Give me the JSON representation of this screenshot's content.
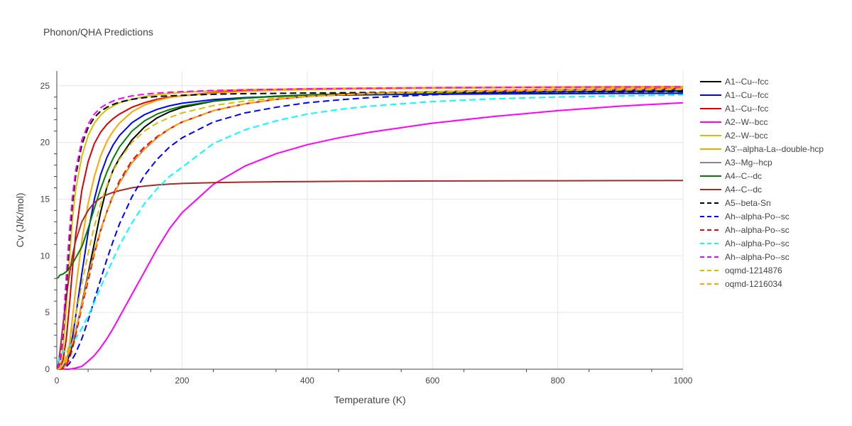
{
  "chart_data": {
    "type": "line",
    "title": "Phonon/QHA Predictions",
    "xlabel": "Temperature (K)",
    "ylabel": "Cv (J/K/mol)",
    "xlim": [
      0,
      1000
    ],
    "ylim": [
      0,
      26.3
    ],
    "xticks": [
      0,
      200,
      400,
      600,
      800,
      1000
    ],
    "yticks": [
      0,
      5,
      10,
      15,
      20,
      25
    ],
    "grid": true,
    "legend_position": "right",
    "x": [
      1,
      5,
      10,
      15,
      20,
      25,
      30,
      40,
      50,
      60,
      70,
      80,
      90,
      100,
      120,
      140,
      160,
      180,
      200,
      250,
      300,
      350,
      400,
      450,
      500,
      600,
      700,
      800,
      900,
      1000
    ],
    "series": [
      {
        "name": "A1--Cu--fcc",
        "color": "#000000",
        "dash": "solid",
        "values": [
          0.0,
          0.02,
          0.16,
          0.52,
          1.19,
          2.12,
          3.26,
          5.79,
          8.41,
          11.13,
          13.86,
          16.08,
          17.57,
          18.6,
          20.22,
          21.36,
          22.16,
          22.7,
          23.09,
          23.64,
          23.91,
          24.08,
          24.19,
          24.26,
          24.32,
          24.4,
          24.45,
          24.49,
          24.52,
          24.55
        ]
      },
      {
        "name": "A1--Cu--fcc",
        "color": "#0000ff",
        "dash": "solid",
        "values": [
          0.0,
          0.02,
          0.16,
          0.59,
          1.43,
          2.8,
          4.64,
          8.44,
          12.05,
          15.0,
          17.15,
          18.68,
          19.79,
          20.61,
          21.74,
          22.45,
          22.91,
          23.23,
          23.46,
          23.78,
          23.95,
          24.05,
          24.12,
          24.17,
          24.2,
          24.25,
          24.28,
          24.3,
          24.32,
          24.33
        ]
      },
      {
        "name": "A1--Cu--fcc",
        "color": "#dd0000",
        "dash": "solid",
        "values": [
          0.0,
          0.03,
          0.8,
          2.6,
          5.5,
          8.8,
          11.8,
          15.8,
          18.3,
          19.9,
          20.9,
          21.6,
          22.1,
          22.5,
          23.1,
          23.5,
          23.8,
          24.0,
          24.1,
          24.4,
          24.55,
          24.65,
          24.7,
          24.75,
          24.78,
          24.82,
          24.85,
          24.87,
          24.89,
          24.9
        ]
      },
      {
        "name": "A2--W--bcc",
        "color": "#ff00ff",
        "dash": "solid",
        "values": [
          0.0,
          0.0,
          0.0,
          0.0,
          0.0,
          0.05,
          0.1,
          0.25,
          0.7,
          1.2,
          1.9,
          2.7,
          3.6,
          4.6,
          6.6,
          8.6,
          10.6,
          12.4,
          13.8,
          16.3,
          17.9,
          19.0,
          19.8,
          20.4,
          20.9,
          21.7,
          22.3,
          22.8,
          23.2,
          23.5
        ]
      },
      {
        "name": "A2--W--bcc",
        "color": "#d4c000",
        "dash": "solid",
        "values": [
          0.0,
          0.2,
          1.8,
          5.2,
          9.5,
          13.2,
          15.8,
          18.8,
          20.6,
          21.7,
          22.4,
          22.9,
          23.2,
          23.5,
          23.8,
          24.05,
          24.2,
          24.3,
          24.4,
          24.55,
          24.65,
          24.7,
          24.75,
          24.78,
          24.8,
          24.85,
          24.88,
          24.9,
          24.92,
          24.93
        ]
      },
      {
        "name": "A3'--alpha-La--double-hcp",
        "color": "#ffa500",
        "dash": "solid",
        "values": [
          0.0,
          0.0,
          0.0,
          0.4,
          2.1,
          4.5,
          7.0,
          11.3,
          14.6,
          17.0,
          18.8,
          20.1,
          21.0,
          21.7,
          22.7,
          23.3,
          23.7,
          23.95,
          24.1,
          24.35,
          24.5,
          24.6,
          24.66,
          24.7,
          24.73,
          24.78,
          24.81,
          24.83,
          24.85,
          24.86
        ]
      },
      {
        "name": "A3--Mg--hcp",
        "color": "#888888",
        "dash": "solid",
        "values": [
          0.0,
          0.05,
          0.3,
          0.8,
          1.5,
          2.4,
          3.4,
          5.7,
          8.2,
          10.4,
          12.3,
          13.9,
          15.3,
          16.4,
          18.2,
          19.4,
          20.4,
          21.2,
          21.8,
          22.8,
          23.4,
          23.8,
          24.05,
          24.2,
          24.32,
          24.48,
          24.58,
          24.65,
          24.7,
          24.74
        ]
      },
      {
        "name": "A4--C--dc",
        "color": "#008000",
        "dash": "solid",
        "values": [
          8.0,
          8.3,
          8.4,
          8.6,
          8.9,
          9.3,
          9.8,
          10.8,
          12.4,
          14.2,
          15.9,
          17.4,
          18.6,
          19.6,
          21.0,
          21.9,
          22.5,
          22.9,
          23.2,
          23.65,
          23.9,
          24.05,
          24.15,
          24.22,
          24.27,
          24.35,
          24.4,
          24.44,
          24.47,
          24.49
        ]
      },
      {
        "name": "A4--C--dc",
        "color": "#a52a2a",
        "dash": "solid",
        "values": [
          0.0,
          1.5,
          4.0,
          6.3,
          8.3,
          10.0,
          11.3,
          13.0,
          14.0,
          14.7,
          15.1,
          15.4,
          15.6,
          15.75,
          16.0,
          16.15,
          16.25,
          16.33,
          16.38,
          16.45,
          16.5,
          16.53,
          16.55,
          16.57,
          16.58,
          16.6,
          16.61,
          16.62,
          16.63,
          16.64
        ]
      },
      {
        "name": "A5--beta-Sn",
        "color": "#000000",
        "dash": "dash",
        "values": [
          0.0,
          0.5,
          3.0,
          7.0,
          11.0,
          14.5,
          17.0,
          19.8,
          21.3,
          22.2,
          22.75,
          23.1,
          23.35,
          23.55,
          23.8,
          23.95,
          24.05,
          24.1,
          24.15,
          24.25,
          24.3,
          24.33,
          24.36,
          24.38,
          24.4,
          24.42,
          24.44,
          24.45,
          24.46,
          24.47
        ]
      },
      {
        "name": "Ah--alpha-Po--sc",
        "color": "#0000ff",
        "dash": "dash",
        "values": [
          0.0,
          0.0,
          0.05,
          0.2,
          0.5,
          0.9,
          1.4,
          2.7,
          4.3,
          6.1,
          7.9,
          9.7,
          11.3,
          12.8,
          15.2,
          17.1,
          18.5,
          19.6,
          20.4,
          21.8,
          22.6,
          23.1,
          23.5,
          23.75,
          23.95,
          24.2,
          24.38,
          24.5,
          24.58,
          24.64
        ]
      },
      {
        "name": "Ah--alpha-Po--sc",
        "color": "#ff0000",
        "dash": "dash",
        "values": [
          0.0,
          0.0,
          0.05,
          0.3,
          0.9,
          1.8,
          3.0,
          5.5,
          7.8,
          10.2,
          12.2,
          13.9,
          15.4,
          16.6,
          18.4,
          19.6,
          20.5,
          21.2,
          21.8,
          22.8,
          23.4,
          23.8,
          24.05,
          24.2,
          24.32,
          24.48,
          24.58,
          24.65,
          24.7,
          24.74
        ]
      },
      {
        "name": "Ah--alpha-Po--sc",
        "color": "#00ffff",
        "dash": "dash",
        "values": [
          0.5,
          1.2,
          1.5,
          1.7,
          2.0,
          2.3,
          2.7,
          3.6,
          4.7,
          5.9,
          7.2,
          8.5,
          9.7,
          10.9,
          12.9,
          14.6,
          15.9,
          17.0,
          17.8,
          19.9,
          21.1,
          21.9,
          22.5,
          22.9,
          23.2,
          23.6,
          23.85,
          24.0,
          24.1,
          24.2
        ]
      },
      {
        "name": "Ah--alpha-Po--sc",
        "color": "#ff00ff",
        "dash": "dash",
        "values": [
          0.0,
          0.6,
          3.5,
          8.0,
          12.0,
          15.2,
          17.5,
          20.2,
          21.6,
          22.5,
          23.05,
          23.4,
          23.65,
          23.85,
          24.1,
          24.25,
          24.35,
          24.42,
          24.48,
          24.58,
          24.64,
          24.68,
          24.72,
          24.75,
          24.78,
          24.82,
          24.85,
          24.87,
          24.89,
          24.9
        ]
      },
      {
        "name": "oqmd-1214876",
        "color": "#d4c000",
        "dash": "dash",
        "values": [
          0.0,
          0.1,
          0.5,
          1.2,
          2.2,
          3.4,
          4.7,
          7.5,
          10.2,
          12.6,
          14.6,
          16.2,
          17.5,
          18.5,
          20.0,
          21.0,
          21.7,
          22.2,
          22.6,
          23.25,
          23.65,
          23.9,
          24.08,
          24.2,
          24.3,
          24.43,
          24.52,
          24.58,
          24.63,
          24.67
        ]
      },
      {
        "name": "oqmd-1216034",
        "color": "#ffa500",
        "dash": "dash",
        "values": [
          0.0,
          0.05,
          0.3,
          0.8,
          1.5,
          2.4,
          3.4,
          5.7,
          8.2,
          10.4,
          12.3,
          13.9,
          15.3,
          16.4,
          18.2,
          19.4,
          20.4,
          21.2,
          21.8,
          22.8,
          23.4,
          23.8,
          24.05,
          24.2,
          24.32,
          24.48,
          24.58,
          24.65,
          24.7,
          24.74
        ]
      }
    ]
  }
}
